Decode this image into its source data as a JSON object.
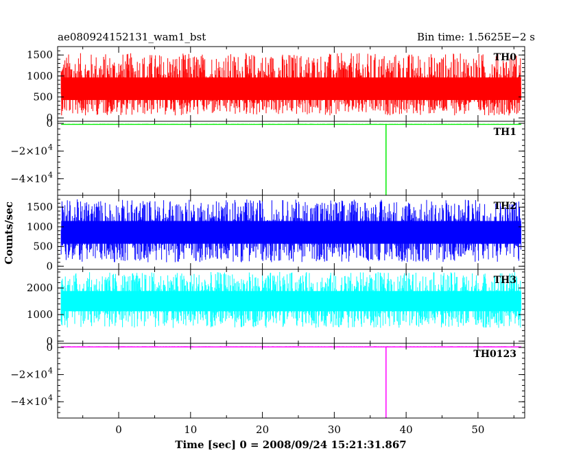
{
  "chart_data": {
    "type": "line",
    "title": "ae080924152131_wam1_bst",
    "subtitle": "Bin time: 1.5625E−2 s",
    "xlabel": "Time [sec] 0 = 2008/09/24 15:21:31.867",
    "ylabel": "Counts/sec",
    "xlim": [
      -8.5,
      56.5
    ],
    "x_ticks": [
      0,
      10,
      20,
      30,
      40,
      50
    ],
    "x_tick_labels": [
      "0",
      "10",
      "20",
      "30",
      "40",
      "50"
    ],
    "x_range_data": [
      -8,
      56
    ],
    "panels": [
      {
        "name": "TH0",
        "color": "#ff0000",
        "ylim": [
          -80,
          1700
        ],
        "y_ticks": [
          0,
          500,
          1000,
          1500
        ],
        "y_tick_labels": [
          "0",
          "500",
          "1000",
          "1500"
        ],
        "baseline": 650,
        "noise_low": 60,
        "noise_high": 1550,
        "spike": null
      },
      {
        "name": "TH1",
        "color": "#00ee00",
        "ylim": [
          -52000,
          1500
        ],
        "y_ticks": [
          0,
          -20000,
          -40000
        ],
        "y_tick_labels": [
          "0",
          "−2×10",
          "−4×10"
        ],
        "y_tick_exponents": [
          "",
          "4",
          "4"
        ],
        "baseline": -500,
        "noise_low": -700,
        "noise_high": -300,
        "spike": {
          "x": 37.2,
          "value": -52000
        }
      },
      {
        "name": "TH2",
        "color": "#0000ff",
        "ylim": [
          -80,
          1800
        ],
        "y_ticks": [
          0,
          500,
          1000,
          1500
        ],
        "y_tick_labels": [
          "0",
          "500",
          "1000",
          "1500"
        ],
        "baseline": 850,
        "noise_low": 100,
        "noise_high": 1700,
        "spike": null
      },
      {
        "name": "TH3",
        "color": "#00ffff",
        "ylim": [
          -80,
          2700
        ],
        "y_ticks": [
          0,
          1000,
          2000
        ],
        "y_tick_labels": [
          "0",
          "1000",
          "2000"
        ],
        "baseline": 1500,
        "noise_low": 500,
        "noise_high": 2600,
        "spike": null
      },
      {
        "name": "TH0123",
        "color": "#ff00ff",
        "ylim": [
          -52000,
          3000
        ],
        "y_ticks": [
          0,
          -20000,
          -40000
        ],
        "y_tick_labels": [
          "0",
          "−2×10",
          "−4×10"
        ],
        "y_tick_exponents": [
          "",
          "4",
          "4"
        ],
        "baseline": 600,
        "noise_low": 300,
        "noise_high": 900,
        "spike": {
          "x": 37.2,
          "value": -52000
        }
      }
    ]
  }
}
